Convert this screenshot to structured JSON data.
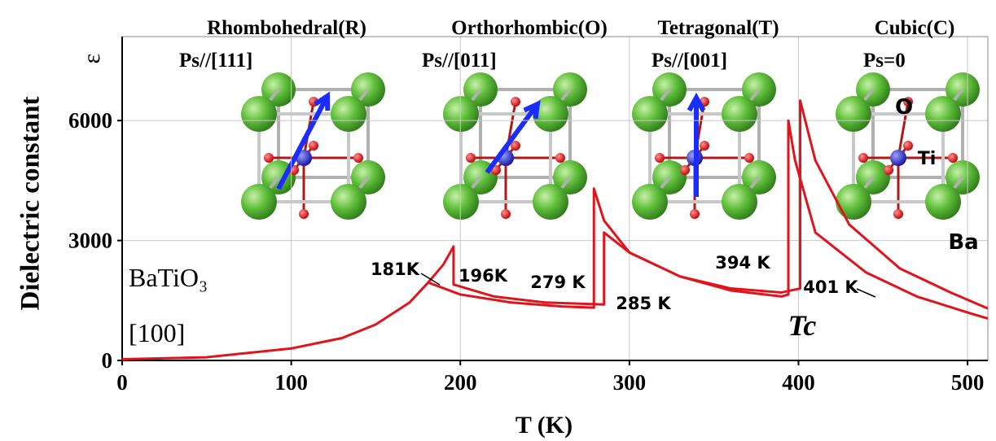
{
  "chart_data": {
    "type": "line",
    "x_label": "T (K)",
    "y_label": "Dielectric constant",
    "y_symbol": "ε",
    "xlim": [
      0,
      512
    ],
    "xticks": [
      0,
      100,
      200,
      300,
      400,
      500
    ],
    "ylim": [
      0,
      8100
    ],
    "yticks": [
      0,
      3000,
      6000
    ],
    "grid": true,
    "series": [
      {
        "color": "#e0141c",
        "x": [
          0,
          50,
          100,
          130,
          150,
          170,
          181,
          200,
          230,
          260,
          279,
          279,
          285,
          300,
          330,
          360,
          390,
          394,
          394,
          398,
          410,
          440,
          470,
          500,
          512
        ],
        "values": [
          30,
          80,
          300,
          560,
          900,
          1450,
          1950,
          1650,
          1450,
          1350,
          1320,
          4300,
          3500,
          2700,
          2100,
          1750,
          1600,
          1650,
          6000,
          5000,
          3200,
          2200,
          1600,
          1200,
          1050
        ]
      },
      {
        "color": "#e0141c",
        "x": [
          181,
          190,
          196,
          196,
          220,
          250,
          285,
          285,
          300,
          330,
          360,
          390,
          401,
          401,
          410,
          430,
          460,
          490,
          512
        ],
        "values": [
          1950,
          2400,
          2850,
          1900,
          1600,
          1450,
          1400,
          3200,
          2700,
          2100,
          1800,
          1700,
          1800,
          6500,
          5000,
          3400,
          2300,
          1700,
          1300
        ]
      }
    ],
    "phases": [
      {
        "name": "Rhombohedral(R)",
        "polarization": "Ps//[111]"
      },
      {
        "name": "Orthorhombic(O)",
        "polarization": "Ps//[011]"
      },
      {
        "name": "Tetragonal(T)",
        "polarization": "Ps//[001]"
      },
      {
        "name": "Cubic(C)",
        "polarization": "Ps=0"
      }
    ],
    "annotations": [
      "181K",
      "196K",
      "279 K",
      "285 K",
      "394 K",
      "401 K",
      "Tc",
      "BaTiO₃",
      "[100]",
      "O",
      "Ti",
      "Ba"
    ]
  }
}
